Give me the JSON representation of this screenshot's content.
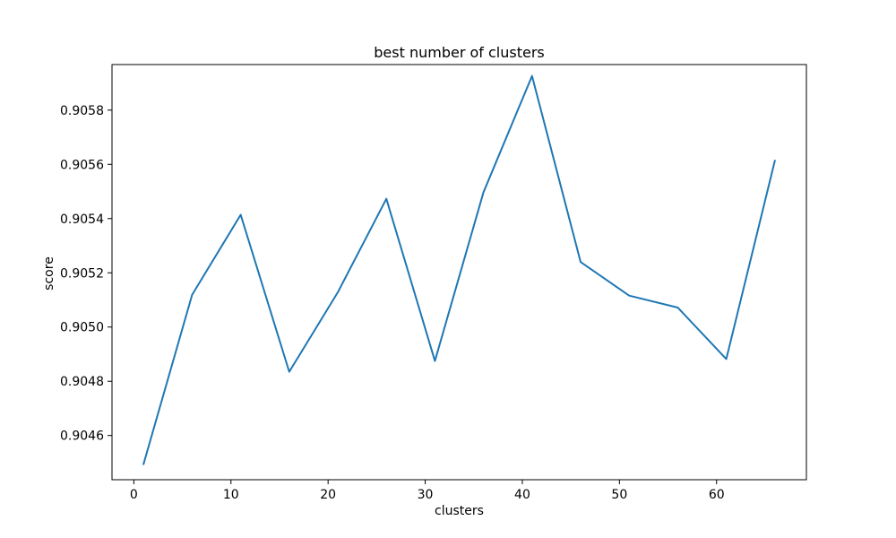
{
  "chart_data": {
    "type": "line",
    "title": "best number of clusters",
    "xlabel": "clusters",
    "ylabel": "score",
    "grid": false,
    "xlim": [
      -2.25,
      69.25
    ],
    "ylim": [
      0.904437,
      0.905968
    ],
    "xticks": [
      0,
      10,
      20,
      30,
      40,
      50,
      60
    ],
    "xtick_labels": [
      "0",
      "10",
      "20",
      "30",
      "40",
      "50",
      "60"
    ],
    "yticks": [
      0.9046,
      0.9048,
      0.905,
      0.9052,
      0.9054,
      0.9056,
      0.9058
    ],
    "ytick_labels": [
      "0.9046",
      "0.9048",
      "0.9050",
      "0.9052",
      "0.9054",
      "0.9056",
      "0.9058"
    ],
    "series": [
      {
        "color": "#1f77b4",
        "x": [
          1,
          6,
          11,
          16,
          21,
          26,
          31,
          36,
          41,
          46,
          51,
          56,
          61,
          66
        ],
        "y": [
          0.904495,
          0.905119,
          0.905414,
          0.904835,
          0.905128,
          0.905473,
          0.904875,
          0.905497,
          0.905926,
          0.90524,
          0.905116,
          0.905072,
          0.904882,
          0.905613
        ]
      }
    ]
  }
}
